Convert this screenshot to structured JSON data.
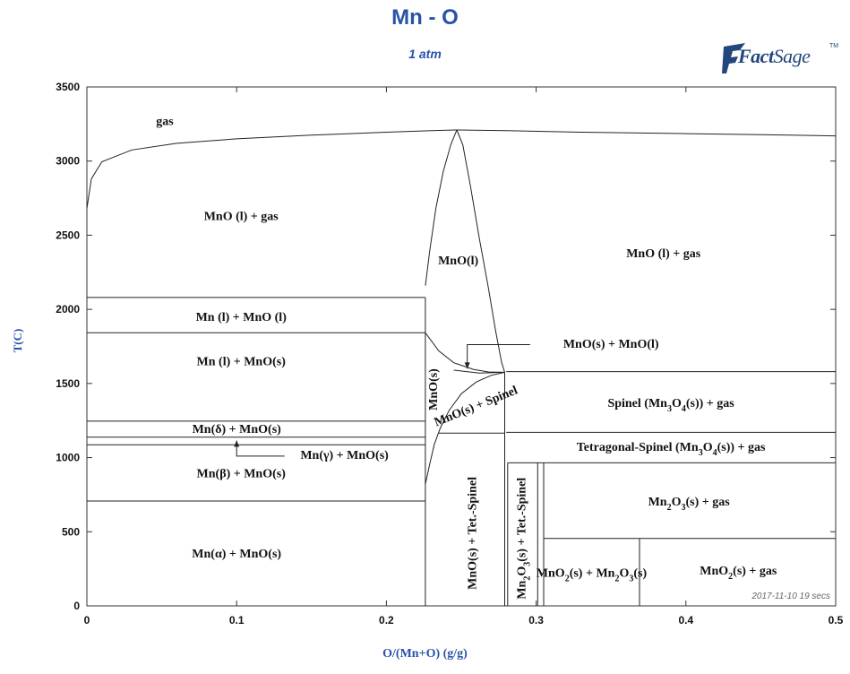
{
  "chart_data": {
    "type": "phase-diagram",
    "title": "Mn - O",
    "subtitle": "1 atm",
    "xlabel": "O/(Mn+O) (g/g)",
    "ylabel": "T(C)",
    "xlim": [
      0,
      0.5
    ],
    "ylim": [
      0,
      3500
    ],
    "x_ticks": [
      0,
      0.1,
      0.2,
      0.3,
      0.4,
      0.5
    ],
    "x_tick_labels": [
      "0",
      "0.1",
      "0.2",
      "0.3",
      "0.4",
      "0.5"
    ],
    "y_ticks": [
      0,
      500,
      1000,
      1500,
      2000,
      2500,
      3000,
      3500
    ],
    "y_tick_labels": [
      "0",
      "500",
      "1000",
      "1500",
      "2000",
      "2500",
      "3000",
      "3500"
    ],
    "grid": false,
    "boundaries": [
      {
        "kind": "curve",
        "points": [
          [
            0,
            2680
          ],
          [
            0.003,
            2880
          ],
          [
            0.01,
            2995
          ],
          [
            0.03,
            3075
          ],
          [
            0.06,
            3120
          ],
          [
            0.1,
            3150
          ],
          [
            0.15,
            3175
          ],
          [
            0.2,
            3195
          ],
          [
            0.23,
            3205
          ],
          [
            0.247,
            3210
          ],
          [
            0.28,
            3205
          ],
          [
            0.33,
            3195
          ],
          [
            0.4,
            3185
          ],
          [
            0.45,
            3178
          ],
          [
            0.5,
            3170
          ]
        ]
      },
      {
        "kind": "curve",
        "points": [
          [
            0.226,
            2160
          ],
          [
            0.229,
            2400
          ],
          [
            0.233,
            2680
          ],
          [
            0.238,
            2930
          ],
          [
            0.243,
            3110
          ],
          [
            0.247,
            3210
          ]
        ]
      },
      {
        "kind": "curve",
        "points": [
          [
            0.247,
            3210
          ],
          [
            0.251,
            3110
          ],
          [
            0.256,
            2840
          ],
          [
            0.262,
            2480
          ],
          [
            0.268,
            2150
          ],
          [
            0.273,
            1850
          ],
          [
            0.277,
            1640
          ],
          [
            0.279,
            1575
          ]
        ]
      },
      {
        "kind": "curve",
        "points": [
          [
            0.226,
            1842
          ],
          [
            0.235,
            1720
          ],
          [
            0.245,
            1640
          ],
          [
            0.258,
            1595
          ],
          [
            0.268,
            1578
          ],
          [
            0.279,
            1575
          ]
        ]
      },
      {
        "kind": "curve",
        "points": [
          [
            0.226,
            820
          ],
          [
            0.229,
            960
          ],
          [
            0.232,
            1090
          ],
          [
            0.236,
            1200
          ],
          [
            0.242,
            1320
          ],
          [
            0.25,
            1430
          ],
          [
            0.26,
            1510
          ],
          [
            0.27,
            1555
          ],
          [
            0.279,
            1575
          ]
        ]
      },
      {
        "kind": "curve",
        "points": [
          [
            0.245,
            1590
          ],
          [
            0.262,
            1570
          ],
          [
            0.279,
            1575
          ]
        ]
      },
      {
        "kind": "line",
        "points": [
          [
            0.226,
            0
          ],
          [
            0.226,
            2080
          ]
        ]
      },
      {
        "kind": "line",
        "points": [
          [
            0.235,
            1165
          ],
          [
            0.279,
            1165
          ]
        ]
      },
      {
        "kind": "line",
        "points": [
          [
            0.279,
            0
          ],
          [
            0.279,
            1575
          ]
        ]
      },
      {
        "kind": "line",
        "points": [
          [
            0.28,
            1580
          ],
          [
            0.5,
            1580
          ]
        ]
      },
      {
        "kind": "line",
        "points": [
          [
            0.28,
            1170
          ],
          [
            0.5,
            1170
          ]
        ]
      },
      {
        "kind": "line",
        "points": [
          [
            0.281,
            965
          ],
          [
            0.5,
            965
          ]
        ]
      },
      {
        "kind": "line",
        "points": [
          [
            0.281,
            0
          ],
          [
            0.281,
            965
          ]
        ]
      },
      {
        "kind": "line",
        "points": [
          [
            0.301,
            0
          ],
          [
            0.301,
            965
          ]
        ]
      },
      {
        "kind": "line",
        "points": [
          [
            0.305,
            0
          ],
          [
            0.305,
            965
          ]
        ]
      },
      {
        "kind": "line",
        "points": [
          [
            0.305,
            455
          ],
          [
            0.5,
            455
          ]
        ]
      },
      {
        "kind": "line",
        "points": [
          [
            0.369,
            0
          ],
          [
            0.369,
            455
          ]
        ]
      },
      {
        "kind": "line",
        "points": [
          [
            0,
            2080
          ],
          [
            0.226,
            2080
          ]
        ]
      },
      {
        "kind": "line",
        "points": [
          [
            0,
            1842
          ],
          [
            0.226,
            1842
          ]
        ]
      },
      {
        "kind": "line",
        "points": [
          [
            0,
            1246
          ],
          [
            0.226,
            1246
          ]
        ]
      },
      {
        "kind": "line",
        "points": [
          [
            0,
            1138
          ],
          [
            0.226,
            1138
          ]
        ]
      },
      {
        "kind": "line",
        "points": [
          [
            0,
            1087
          ],
          [
            0.226,
            1087
          ]
        ]
      },
      {
        "kind": "line",
        "points": [
          [
            0,
            707
          ],
          [
            0.226,
            707
          ]
        ]
      }
    ],
    "regions": [
      {
        "label": "gas",
        "x": 0.052,
        "y": 3260
      },
      {
        "label": "MnO (l) + gas",
        "x": 0.103,
        "y": 2620
      },
      {
        "label": "MnO(l)",
        "x": 0.248,
        "y": 2320
      },
      {
        "label": "MnO (l) + gas",
        "x": 0.385,
        "y": 2370
      },
      {
        "label": "Mn (l) + MnO (l)",
        "x": 0.103,
        "y": 1940
      },
      {
        "label": "MnO(s) + MnO(l)",
        "x": 0.35,
        "y": 1760
      },
      {
        "label": "Mn (l) + MnO(s)",
        "x": 0.103,
        "y": 1640
      },
      {
        "label": "MnO(s)",
        "x": 0.232,
        "y": 1460,
        "rotate": -90
      },
      {
        "label": "MnO(s) + Spinel",
        "x": 0.26,
        "y": 1340,
        "rotate": -22
      },
      {
        "label": "Spinel (Mn3O4(s)) + gas",
        "x": 0.39,
        "y": 1360
      },
      {
        "label": "Mn(δ) + MnO(s)",
        "x": 0.1,
        "y": 1185
      },
      {
        "label": "Tetragonal-Spinel (Mn3O4(s)) + gas",
        "x": 0.39,
        "y": 1065
      },
      {
        "label": "Mn(γ) + MnO(s)",
        "x": 0.172,
        "y": 1010
      },
      {
        "label": "Mn(β) + MnO(s)",
        "x": 0.103,
        "y": 885
      },
      {
        "label": "Mn2O3(s) + gas",
        "x": 0.402,
        "y": 695
      },
      {
        "label": "MnO(s) + Tet.-Spinel",
        "x": 0.258,
        "y": 490,
        "rotate": -90
      },
      {
        "label": "Mn2O3(s) + Tet.-Spinel",
        "x": 0.291,
        "y": 455,
        "rotate": -90
      },
      {
        "label": "Mn(α) + MnO(s)",
        "x": 0.1,
        "y": 345
      },
      {
        "label": "MnO2(s) + Mn2O3(s)",
        "x": 0.337,
        "y": 215
      },
      {
        "label": "MnO2(s) + gas",
        "x": 0.435,
        "y": 230
      }
    ],
    "annotations": [
      {
        "label": "MnO(s) + MnO(l)",
        "from": [
          0.296,
          1762
        ],
        "to": [
          0.254,
          1600
        ]
      },
      {
        "label": "Mn(γ) + MnO(s)",
        "from": [
          0.132,
          1010
        ],
        "to": [
          0.1,
          1115
        ]
      }
    ],
    "timestamp": "2017-11-10  19 secs"
  },
  "logo": {
    "text_bold": "Fact",
    "text_rest": "Sage",
    "tm": "TM"
  }
}
